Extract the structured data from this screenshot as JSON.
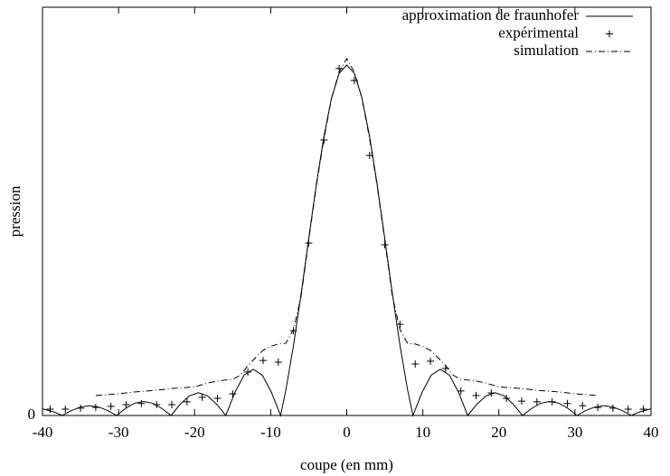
{
  "chart_data": {
    "type": "line",
    "xlabel": "coupe (en mm)",
    "ylabel": "pression",
    "xlim": [
      -40,
      40
    ],
    "ylim": [
      0,
      1.165
    ],
    "xticks": [
      -40,
      -30,
      -20,
      -10,
      0,
      10,
      20,
      30,
      40
    ],
    "yticks": [
      0
    ],
    "legend": "top-right",
    "series": [
      {
        "name": "approximation de fraunhofer",
        "color": "#000000",
        "style": "line",
        "x": [
          -40,
          -38.6,
          -37.4,
          -36.2,
          -35,
          -33.8,
          -32.6,
          -31.4,
          -30.25,
          -29.1,
          -27.9,
          -26.7,
          -25.5,
          -24.3,
          -23.1,
          -21.9,
          -20.7,
          -19.5,
          -18.3,
          -17.1,
          -15.9,
          -14.7,
          -13.5,
          -12.3,
          -11.1,
          -9.9,
          -8.7,
          -8,
          -7,
          -6,
          -5,
          -4,
          -3,
          -2,
          -1,
          0,
          1,
          2,
          3,
          4,
          5,
          6,
          7,
          8,
          8.7,
          9.9,
          11.1,
          12.3,
          13.5,
          14.7,
          15.9,
          17.1,
          18.3,
          19.5,
          20.7,
          21.9,
          23.1,
          24.3,
          25.5,
          26.7,
          27.9,
          29.1,
          30.25,
          31.4,
          32.6,
          33.8,
          35,
          36.2,
          37.4,
          38.6,
          40
        ],
        "values": [
          0.019,
          0.011,
          0,
          0.014,
          0.024,
          0.028,
          0.024,
          0.014,
          0,
          0.02,
          0.035,
          0.04,
          0.035,
          0.02,
          0,
          0.032,
          0.056,
          0.065,
          0.056,
          0.032,
          0,
          0.066,
          0.115,
          0.132,
          0.115,
          0.066,
          0,
          0.073,
          0.2,
          0.347,
          0.505,
          0.659,
          0.797,
          0.906,
          0.976,
          1,
          0.976,
          0.906,
          0.797,
          0.659,
          0.505,
          0.347,
          0.2,
          0.073,
          0,
          0.066,
          0.115,
          0.132,
          0.115,
          0.066,
          0,
          0.032,
          0.056,
          0.065,
          0.056,
          0.032,
          0,
          0.02,
          0.035,
          0.04,
          0.035,
          0.02,
          0,
          0.014,
          0.024,
          0.028,
          0.024,
          0.014,
          0,
          0.011,
          0.019
        ]
      },
      {
        "name": "expérimental",
        "color": "#000000",
        "style": "cross",
        "x": [
          -39,
          -37,
          -35,
          -33,
          -31,
          -29,
          -27,
          -25,
          -23,
          -21,
          -19,
          -17,
          -15,
          -13,
          -11,
          -9,
          -7,
          -5,
          -3,
          -1,
          1,
          3,
          5,
          7,
          9,
          11,
          13,
          15,
          17,
          19,
          21,
          23,
          25,
          27,
          29,
          31,
          33,
          35,
          37,
          39
        ],
        "values": [
          0.018,
          0.018,
          0.021,
          0.023,
          0.026,
          0.031,
          0.034,
          0.031,
          0.031,
          0.039,
          0.052,
          0.049,
          0.062,
          0.124,
          0.157,
          0.152,
          0.242,
          0.492,
          0.786,
          0.99,
          0.956,
          0.742,
          0.487,
          0.26,
          0.147,
          0.155,
          0.134,
          0.07,
          0.057,
          0.064,
          0.049,
          0.041,
          0.039,
          0.039,
          0.034,
          0.028,
          0.023,
          0.021,
          0.018,
          0.018
        ]
      },
      {
        "name": "simulation",
        "color": "#000000",
        "style": "dashdot",
        "x": [
          -33,
          -30,
          -28,
          -25,
          -23,
          -21,
          -20,
          -19,
          -18,
          -17,
          -16,
          -15,
          -14,
          -13,
          -12,
          -11,
          -10,
          -9,
          -8,
          -7,
          -6,
          -5,
          -4,
          -3,
          -2,
          -1,
          0,
          1,
          2,
          3,
          4,
          5,
          6,
          7,
          8,
          9,
          10,
          11,
          12,
          13,
          14,
          15,
          16,
          17,
          18,
          19,
          20,
          21,
          23,
          25,
          28,
          30,
          33
        ],
        "values": [
          0.057,
          0.062,
          0.067,
          0.072,
          0.077,
          0.08,
          0.082,
          0.088,
          0.094,
          0.098,
          0.101,
          0.103,
          0.115,
          0.142,
          0.165,
          0.186,
          0.197,
          0.204,
          0.206,
          0.245,
          0.34,
          0.5,
          0.655,
          0.79,
          0.905,
          0.98,
          1.018,
          0.98,
          0.905,
          0.79,
          0.655,
          0.5,
          0.34,
          0.245,
          0.206,
          0.204,
          0.197,
          0.186,
          0.165,
          0.142,
          0.115,
          0.103,
          0.101,
          0.098,
          0.094,
          0.088,
          0.082,
          0.08,
          0.077,
          0.072,
          0.067,
          0.062,
          0.057
        ]
      }
    ]
  }
}
